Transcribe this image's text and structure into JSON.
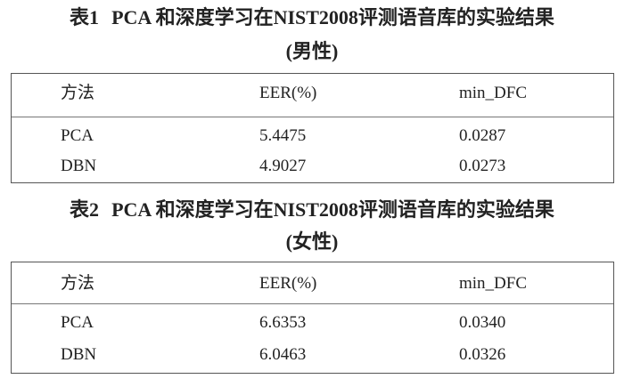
{
  "tables": [
    {
      "label": "表1",
      "title": "PCA 和深度学习在NIST2008评测语音库的实验结果",
      "subtitle": "(男性)",
      "headers": [
        "方法",
        "EER(%)",
        "min_DFC"
      ],
      "rows": [
        [
          "PCA",
          "5.4475",
          "0.0287"
        ],
        [
          "DBN",
          "4.9027",
          "0.0273"
        ]
      ]
    },
    {
      "label": "表2",
      "title": "PCA 和深度学习在NIST2008评测语音库的实验结果",
      "subtitle": "(女性)",
      "headers": [
        "方法",
        "EER(%)",
        "min_DFC"
      ],
      "rows": [
        [
          "PCA",
          "6.6353",
          "0.0340"
        ],
        [
          "DBN",
          "6.0463",
          "0.0326"
        ]
      ]
    }
  ]
}
